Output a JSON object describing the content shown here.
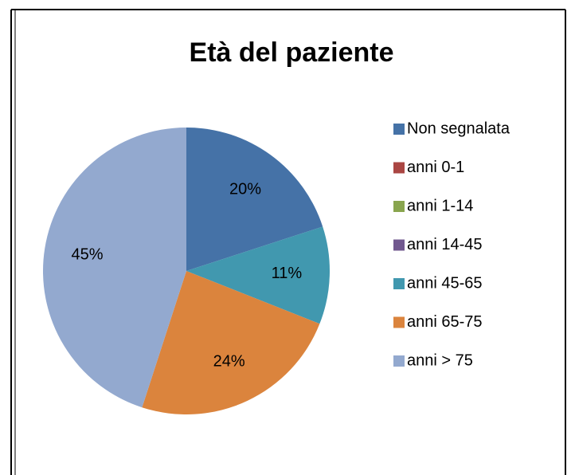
{
  "chart_data": {
    "type": "pie",
    "title": "Età del paziente",
    "categories": [
      "Non segnalata",
      "anni 0-1",
      "anni 1-14",
      "anni 14-45",
      "anni 45-65",
      "anni 65-75",
      "anni > 75"
    ],
    "values": [
      20,
      0,
      0,
      0,
      11,
      24,
      45
    ],
    "value_labels": [
      "20%",
      null,
      null,
      null,
      "11%",
      "24%",
      "45%"
    ],
    "colors": [
      "#4572a7",
      "#aa4643",
      "#89a54e",
      "#71588f",
      "#4198af",
      "#db843d",
      "#93a9cf"
    ],
    "legend": "right"
  }
}
